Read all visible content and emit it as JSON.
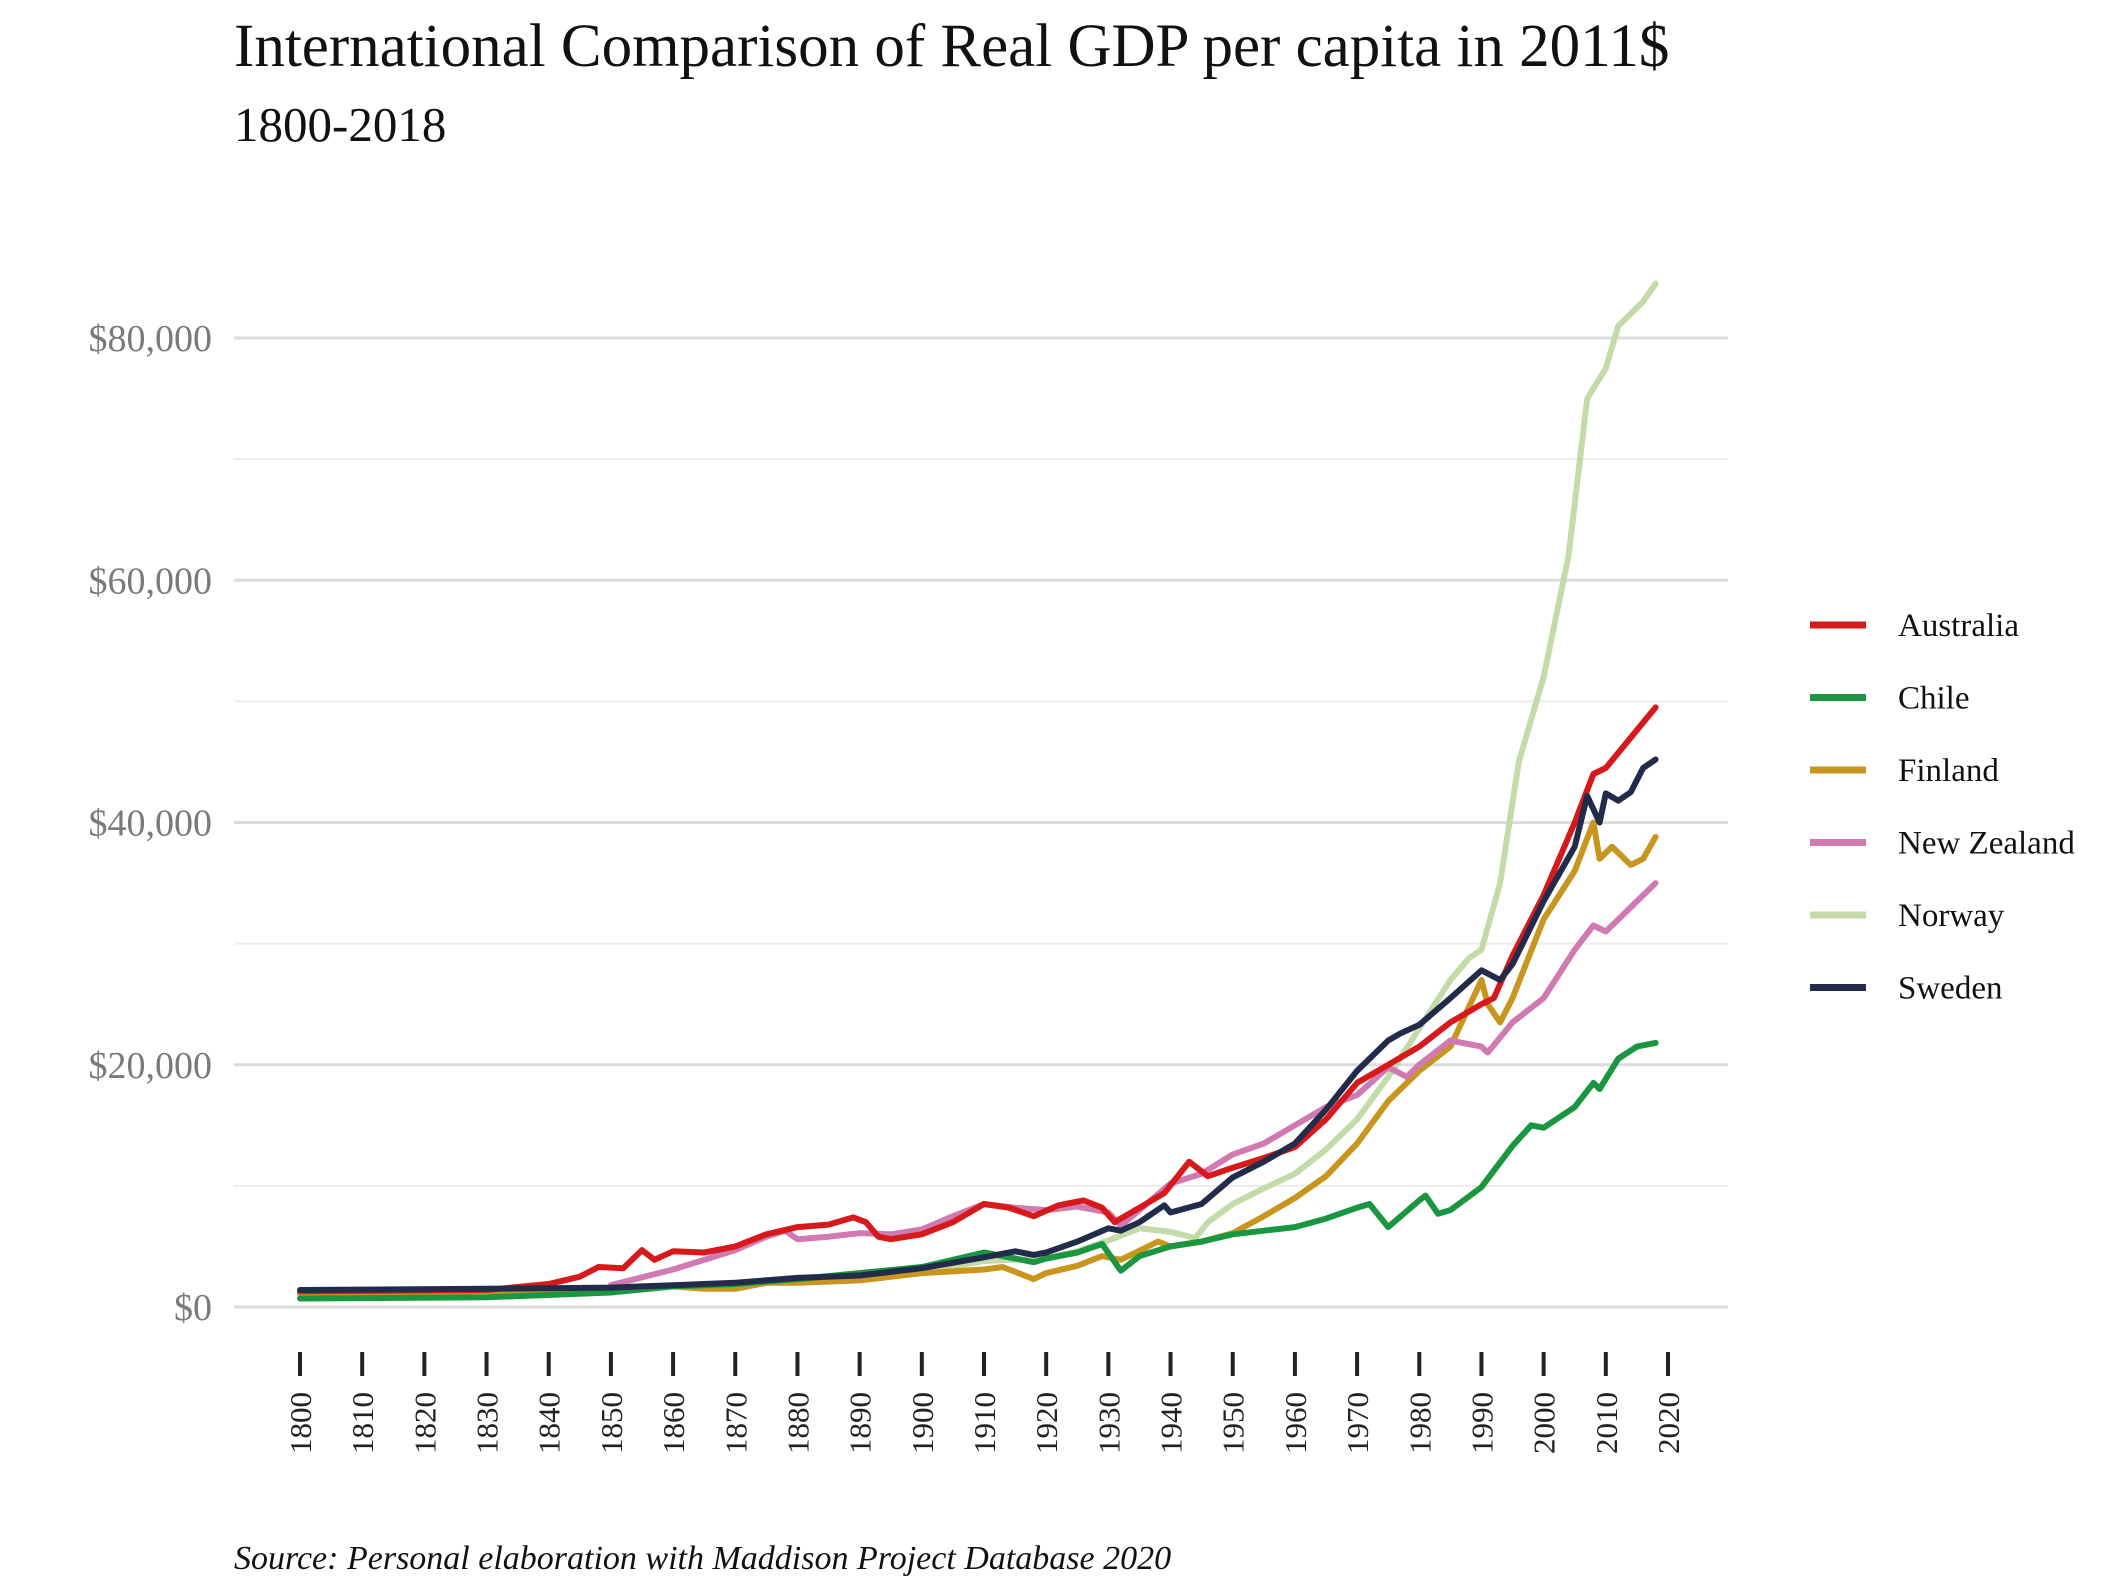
{
  "chart_data": {
    "type": "line",
    "title": "International Comparison of Real GDP per capita in 2011$",
    "subtitle": "1800-2018",
    "source": "Source: Personal elaboration with Maddison Project Database 2020",
    "ylim": [
      0,
      90000
    ],
    "y_ticks": [
      0,
      20000,
      40000,
      60000,
      80000
    ],
    "y_tick_labels": [
      "$0",
      "$20,000",
      "$40,000",
      "$60,000",
      "$80,000"
    ],
    "x_range": [
      1800,
      2018
    ],
    "x_ticks": [
      1800,
      1810,
      1820,
      1830,
      1840,
      1850,
      1860,
      1870,
      1880,
      1890,
      1900,
      1910,
      1920,
      1930,
      1940,
      1950,
      1960,
      1970,
      1980,
      1990,
      2000,
      2010,
      2020
    ],
    "grid": "horizontal",
    "legend_position": "right",
    "series": [
      {
        "name": "Australia",
        "color": "#d7191c",
        "points": [
          [
            1800,
            1300
          ],
          [
            1830,
            1400
          ],
          [
            1840,
            1900
          ],
          [
            1845,
            2500
          ],
          [
            1848,
            3300
          ],
          [
            1852,
            3200
          ],
          [
            1855,
            4700
          ],
          [
            1857,
            3900
          ],
          [
            1860,
            4600
          ],
          [
            1865,
            4500
          ],
          [
            1870,
            5000
          ],
          [
            1875,
            6000
          ],
          [
            1880,
            6600
          ],
          [
            1885,
            6800
          ],
          [
            1889,
            7400
          ],
          [
            1891,
            7000
          ],
          [
            1893,
            5800
          ],
          [
            1895,
            5600
          ],
          [
            1900,
            6000
          ],
          [
            1905,
            7000
          ],
          [
            1910,
            8500
          ],
          [
            1914,
            8200
          ],
          [
            1918,
            7500
          ],
          [
            1922,
            8400
          ],
          [
            1926,
            8800
          ],
          [
            1929,
            8200
          ],
          [
            1931,
            7000
          ],
          [
            1935,
            8200
          ],
          [
            1939,
            9400
          ],
          [
            1943,
            12000
          ],
          [
            1946,
            10800
          ],
          [
            1950,
            11500
          ],
          [
            1955,
            12300
          ],
          [
            1960,
            13200
          ],
          [
            1965,
            15500
          ],
          [
            1970,
            18500
          ],
          [
            1975,
            20000
          ],
          [
            1980,
            21500
          ],
          [
            1985,
            23500
          ],
          [
            1990,
            25000
          ],
          [
            1992,
            25500
          ],
          [
            1995,
            29000
          ],
          [
            2000,
            34000
          ],
          [
            2005,
            40000
          ],
          [
            2008,
            44000
          ],
          [
            2010,
            44500
          ],
          [
            2014,
            47000
          ],
          [
            2018,
            49500
          ]
        ]
      },
      {
        "name": "Chile",
        "color": "#1a9641",
        "points": [
          [
            1800,
            700
          ],
          [
            1830,
            800
          ],
          [
            1850,
            1200
          ],
          [
            1860,
            1700
          ],
          [
            1870,
            1900
          ],
          [
            1880,
            2300
          ],
          [
            1890,
            2800
          ],
          [
            1900,
            3300
          ],
          [
            1910,
            4500
          ],
          [
            1915,
            4000
          ],
          [
            1918,
            3700
          ],
          [
            1920,
            4000
          ],
          [
            1925,
            4500
          ],
          [
            1929,
            5200
          ],
          [
            1932,
            3000
          ],
          [
            1935,
            4200
          ],
          [
            1940,
            5000
          ],
          [
            1945,
            5400
          ],
          [
            1950,
            6000
          ],
          [
            1955,
            6300
          ],
          [
            1960,
            6600
          ],
          [
            1965,
            7300
          ],
          [
            1970,
            8200
          ],
          [
            1972,
            8500
          ],
          [
            1975,
            6600
          ],
          [
            1980,
            8800
          ],
          [
            1981,
            9200
          ],
          [
            1983,
            7700
          ],
          [
            1985,
            8000
          ],
          [
            1990,
            9900
          ],
          [
            1995,
            13300
          ],
          [
            1998,
            15000
          ],
          [
            2000,
            14800
          ],
          [
            2005,
            16500
          ],
          [
            2008,
            18500
          ],
          [
            2009,
            18000
          ],
          [
            2012,
            20500
          ],
          [
            2015,
            21500
          ],
          [
            2018,
            21800
          ]
        ]
      },
      {
        "name": "Finland",
        "color": "#c8961e",
        "points": [
          [
            1800,
            1100
          ],
          [
            1830,
            1300
          ],
          [
            1860,
            1700
          ],
          [
            1865,
            1500
          ],
          [
            1870,
            1500
          ],
          [
            1875,
            2000
          ],
          [
            1880,
            2000
          ],
          [
            1890,
            2200
          ],
          [
            1900,
            2800
          ],
          [
            1910,
            3100
          ],
          [
            1913,
            3300
          ],
          [
            1918,
            2300
          ],
          [
            1920,
            2800
          ],
          [
            1925,
            3400
          ],
          [
            1929,
            4200
          ],
          [
            1932,
            3900
          ],
          [
            1938,
            5400
          ],
          [
            1940,
            5000
          ],
          [
            1945,
            5400
          ],
          [
            1950,
            6100
          ],
          [
            1955,
            7500
          ],
          [
            1960,
            9000
          ],
          [
            1965,
            10800
          ],
          [
            1970,
            13500
          ],
          [
            1975,
            17000
          ],
          [
            1980,
            19500
          ],
          [
            1985,
            21500
          ],
          [
            1990,
            27000
          ],
          [
            1991,
            25000
          ],
          [
            1993,
            23500
          ],
          [
            1995,
            25500
          ],
          [
            2000,
            32000
          ],
          [
            2005,
            36000
          ],
          [
            2008,
            40000
          ],
          [
            2009,
            37000
          ],
          [
            2011,
            38000
          ],
          [
            2014,
            36500
          ],
          [
            2016,
            37000
          ],
          [
            2018,
            38800
          ]
        ]
      },
      {
        "name": "New Zealand",
        "color": "#d17ab1",
        "points": [
          [
            1850,
            1800
          ],
          [
            1860,
            3100
          ],
          [
            1870,
            4700
          ],
          [
            1875,
            5800
          ],
          [
            1878,
            6300
          ],
          [
            1880,
            5600
          ],
          [
            1885,
            5800
          ],
          [
            1890,
            6100
          ],
          [
            1895,
            6000
          ],
          [
            1900,
            6400
          ],
          [
            1905,
            7500
          ],
          [
            1910,
            8500
          ],
          [
            1915,
            8200
          ],
          [
            1920,
            8000
          ],
          [
            1925,
            8300
          ],
          [
            1930,
            7800
          ],
          [
            1932,
            6700
          ],
          [
            1935,
            8000
          ],
          [
            1940,
            10200
          ],
          [
            1945,
            11000
          ],
          [
            1950,
            12600
          ],
          [
            1955,
            13500
          ],
          [
            1960,
            15000
          ],
          [
            1965,
            16500
          ],
          [
            1970,
            17500
          ],
          [
            1975,
            19800
          ],
          [
            1978,
            19000
          ],
          [
            1980,
            20000
          ],
          [
            1985,
            22000
          ],
          [
            1990,
            21500
          ],
          [
            1991,
            21000
          ],
          [
            1995,
            23500
          ],
          [
            2000,
            25500
          ],
          [
            2005,
            29500
          ],
          [
            2008,
            31500
          ],
          [
            2010,
            31000
          ],
          [
            2014,
            33000
          ],
          [
            2018,
            35000
          ]
        ]
      },
      {
        "name": "Norway",
        "color": "#c2dba8",
        "points": [
          [
            1800,
            1200
          ],
          [
            1850,
            1500
          ],
          [
            1870,
            1900
          ],
          [
            1900,
            2900
          ],
          [
            1910,
            3800
          ],
          [
            1920,
            4000
          ],
          [
            1925,
            4600
          ],
          [
            1930,
            5500
          ],
          [
            1935,
            6500
          ],
          [
            1940,
            6200
          ],
          [
            1944,
            5700
          ],
          [
            1946,
            7000
          ],
          [
            1950,
            8500
          ],
          [
            1955,
            9800
          ],
          [
            1960,
            11000
          ],
          [
            1965,
            13000
          ],
          [
            1970,
            15500
          ],
          [
            1975,
            19000
          ],
          [
            1980,
            23000
          ],
          [
            1985,
            27000
          ],
          [
            1988,
            28800
          ],
          [
            1990,
            29500
          ],
          [
            1993,
            35000
          ],
          [
            1996,
            45000
          ],
          [
            2000,
            52000
          ],
          [
            2004,
            62000
          ],
          [
            2007,
            75000
          ],
          [
            2010,
            77500
          ],
          [
            2012,
            81000
          ],
          [
            2014,
            82000
          ],
          [
            2016,
            83000
          ],
          [
            2018,
            84500
          ]
        ]
      },
      {
        "name": "Sweden",
        "color": "#232b4a",
        "points": [
          [
            1800,
            1400
          ],
          [
            1830,
            1500
          ],
          [
            1850,
            1600
          ],
          [
            1860,
            1800
          ],
          [
            1870,
            2000
          ],
          [
            1880,
            2400
          ],
          [
            1890,
            2600
          ],
          [
            1900,
            3200
          ],
          [
            1910,
            4100
          ],
          [
            1915,
            4600
          ],
          [
            1918,
            4300
          ],
          [
            1920,
            4500
          ],
          [
            1925,
            5400
          ],
          [
            1930,
            6500
          ],
          [
            1932,
            6300
          ],
          [
            1935,
            7000
          ],
          [
            1939,
            8400
          ],
          [
            1940,
            7800
          ],
          [
            1945,
            8500
          ],
          [
            1950,
            10700
          ],
          [
            1955,
            12000
          ],
          [
            1960,
            13500
          ],
          [
            1965,
            16300
          ],
          [
            1970,
            19500
          ],
          [
            1975,
            22000
          ],
          [
            1977,
            22600
          ],
          [
            1980,
            23300
          ],
          [
            1985,
            25500
          ],
          [
            1990,
            27800
          ],
          [
            1993,
            27000
          ],
          [
            1995,
            28300
          ],
          [
            2000,
            33500
          ],
          [
            2005,
            38000
          ],
          [
            2007,
            42200
          ],
          [
            2009,
            40000
          ],
          [
            2010,
            42400
          ],
          [
            2012,
            41800
          ],
          [
            2014,
            42500
          ],
          [
            2016,
            44500
          ],
          [
            2018,
            45200
          ]
        ]
      }
    ]
  }
}
